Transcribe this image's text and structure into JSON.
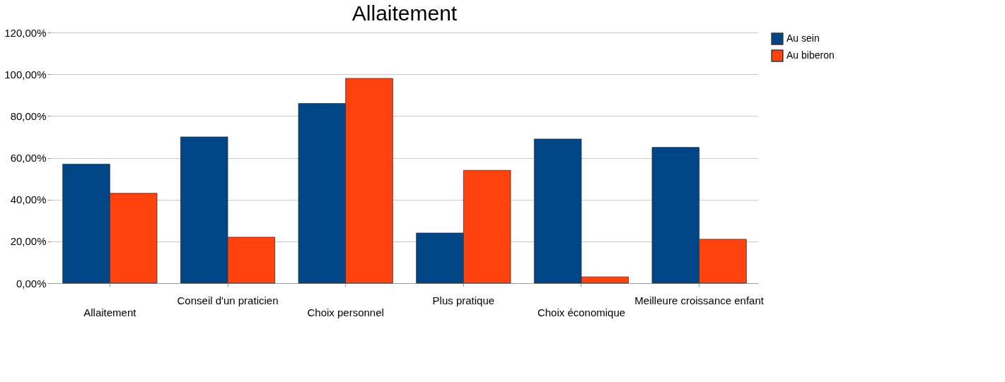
{
  "chart_data": {
    "type": "bar",
    "title": "Allaitement",
    "categories": [
      "Allaitement",
      "Conseil d'un praticien",
      "Choix personnel",
      "Plus pratique",
      "Choix économique",
      "Meilleure croissance enfant"
    ],
    "series": [
      {
        "name": "Au sein",
        "color": "#004586",
        "values": [
          57,
          70,
          86,
          24,
          69,
          65
        ]
      },
      {
        "name": "Au biberon",
        "color": "#ff420e",
        "values": [
          43,
          22,
          98,
          54,
          3,
          21
        ]
      }
    ],
    "ylim": [
      0,
      120
    ],
    "yticks": [
      {
        "value": 0,
        "label": "0,00%"
      },
      {
        "value": 20,
        "label": "20,00%"
      },
      {
        "value": 40,
        "label": "40,00%"
      },
      {
        "value": 60,
        "label": "60,00%"
      },
      {
        "value": 80,
        "label": "80,00%"
      },
      {
        "value": 100,
        "label": "100,00%"
      },
      {
        "value": 120,
        "label": "120,00%"
      }
    ],
    "grid": "y",
    "legend": "right"
  }
}
